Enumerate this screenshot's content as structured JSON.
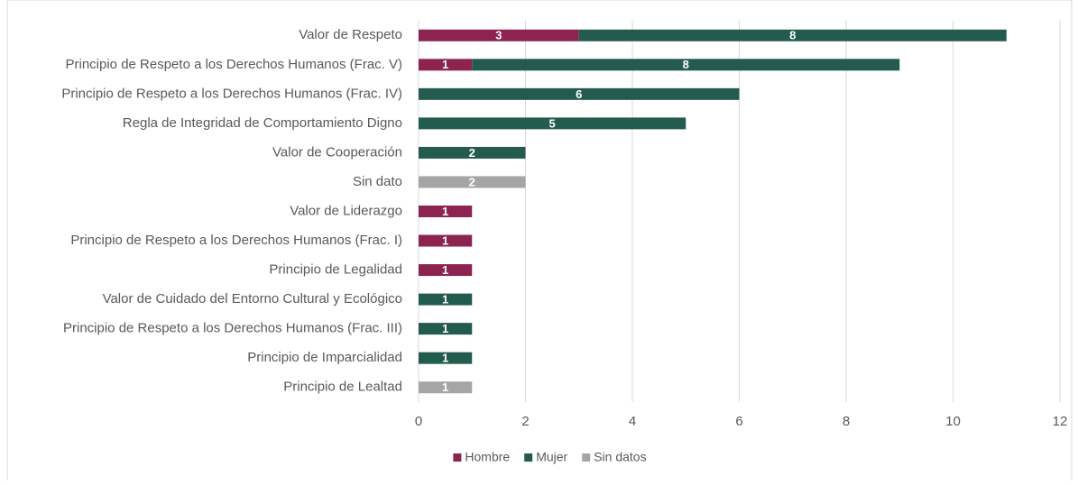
{
  "chart_data": {
    "type": "bar",
    "orientation": "horizontal",
    "stacked": true,
    "categories": [
      "Valor de Respeto",
      "Principio de Respeto a los Derechos Humanos (Frac. V)",
      "Principio de Respeto a los Derechos Humanos (Frac. IV)",
      "Regla de Integridad de Comportamiento Digno",
      "Valor de Cooperación",
      "Sin dato",
      "Valor de Liderazgo",
      "Principio de Respeto a los Derechos Humanos (Frac. I)",
      "Principio de Legalidad",
      "Valor de Cuidado del Entorno Cultural y Ecológico",
      "Principio de Respeto a los Derechos Humanos (Frac. III)",
      "Principio de Imparcialidad",
      "Principio de Lealtad"
    ],
    "series": [
      {
        "name": "Hombre",
        "color": "#8c2350",
        "values": [
          3,
          1,
          null,
          null,
          null,
          null,
          1,
          1,
          1,
          null,
          null,
          null,
          null
        ]
      },
      {
        "name": "Mujer",
        "color": "#235b4e",
        "values": [
          8,
          8,
          6,
          5,
          2,
          null,
          null,
          null,
          null,
          1,
          1,
          1,
          null
        ]
      },
      {
        "name": "Sin datos",
        "color": "#a5a5a5",
        "values": [
          null,
          null,
          null,
          null,
          null,
          2,
          null,
          null,
          null,
          null,
          null,
          null,
          1
        ]
      }
    ],
    "xlim": [
      0,
      12
    ],
    "xticks": [
      0,
      2,
      4,
      6,
      8,
      10,
      12
    ],
    "grid": true,
    "legend": "bottom"
  }
}
